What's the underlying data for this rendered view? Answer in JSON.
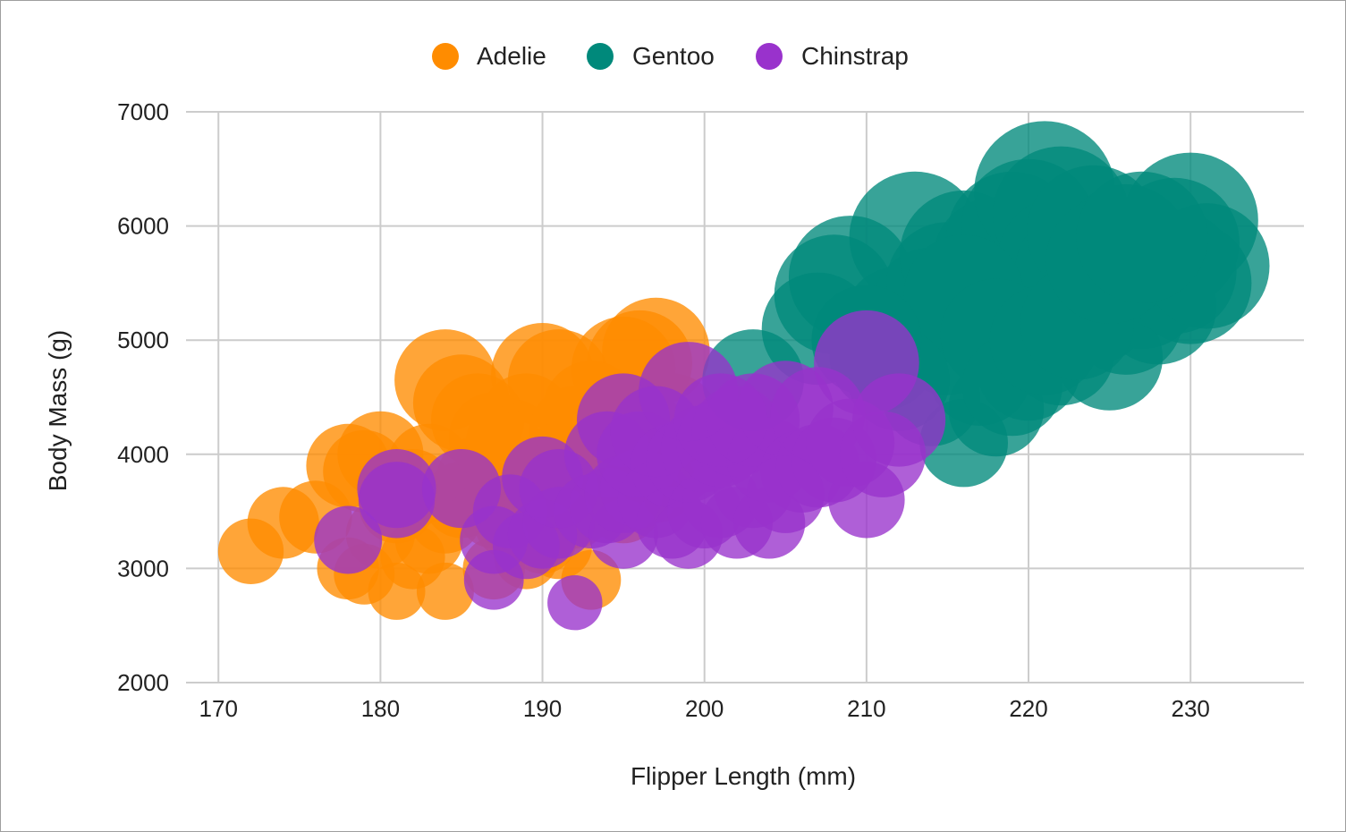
{
  "chart_data": {
    "type": "bubble",
    "xlabel": "Flipper Length (mm)",
    "ylabel": "Body Mass (g)",
    "xlim": [
      168,
      237
    ],
    "ylim": [
      2000,
      7000
    ],
    "xticks": [
      170,
      180,
      190,
      200,
      210,
      220,
      230
    ],
    "yticks": [
      2000,
      3000,
      4000,
      5000,
      6000,
      7000
    ],
    "grid": true,
    "legend_position": "top-center",
    "series": [
      {
        "name": "Adelie",
        "color": "#ff8c00",
        "points": [
          [
            172,
            3150
          ],
          [
            174,
            3400
          ],
          [
            176,
            3450
          ],
          [
            178,
            3900
          ],
          [
            178,
            3000
          ],
          [
            179,
            2950
          ],
          [
            180,
            3300
          ],
          [
            180,
            4000
          ],
          [
            181,
            2800
          ],
          [
            182,
            3100
          ],
          [
            182,
            3700
          ],
          [
            183,
            3250
          ],
          [
            184,
            4650
          ],
          [
            184,
            2800
          ],
          [
            185,
            3600
          ],
          [
            185,
            4450
          ],
          [
            186,
            3800
          ],
          [
            186,
            4300
          ],
          [
            187,
            3500
          ],
          [
            187,
            3000
          ],
          [
            188,
            3400
          ],
          [
            188,
            4100
          ],
          [
            189,
            3600
          ],
          [
            189,
            4300
          ],
          [
            190,
            3700
          ],
          [
            190,
            4700
          ],
          [
            190,
            3250
          ],
          [
            191,
            4650
          ],
          [
            191,
            3900
          ],
          [
            192,
            3500
          ],
          [
            192,
            4200
          ],
          [
            193,
            2900
          ],
          [
            193,
            3800
          ],
          [
            194,
            4000
          ],
          [
            195,
            4750
          ],
          [
            195,
            3550
          ],
          [
            196,
            4800
          ],
          [
            196,
            4200
          ],
          [
            197,
            4900
          ],
          [
            197,
            3750
          ],
          [
            198,
            4300
          ],
          [
            184,
            3450
          ],
          [
            181,
            3550
          ],
          [
            186,
            3650
          ],
          [
            189,
            3100
          ],
          [
            193,
            4400
          ],
          [
            179,
            3850
          ],
          [
            183,
            3900
          ],
          [
            187,
            4150
          ],
          [
            191,
            3200
          ]
        ]
      },
      {
        "name": "Gentoo",
        "color": "#00897b",
        "points": [
          [
            203,
            4650
          ],
          [
            207,
            5100
          ],
          [
            208,
            5400
          ],
          [
            209,
            5550
          ],
          [
            211,
            4850
          ],
          [
            212,
            5150
          ],
          [
            213,
            5900
          ],
          [
            214,
            5300
          ],
          [
            215,
            5500
          ],
          [
            215,
            5000
          ],
          [
            216,
            4100
          ],
          [
            216,
            5750
          ],
          [
            217,
            4700
          ],
          [
            217,
            5300
          ],
          [
            218,
            5700
          ],
          [
            218,
            4400
          ],
          [
            219,
            5200
          ],
          [
            219,
            5900
          ],
          [
            220,
            6000
          ],
          [
            220,
            4750
          ],
          [
            220,
            5400
          ],
          [
            221,
            6300
          ],
          [
            221,
            5550
          ],
          [
            222,
            6100
          ],
          [
            222,
            4900
          ],
          [
            222,
            5700
          ],
          [
            223,
            5600
          ],
          [
            224,
            5950
          ],
          [
            224,
            5300
          ],
          [
            225,
            4850
          ],
          [
            225,
            5500
          ],
          [
            226,
            5800
          ],
          [
            226,
            5200
          ],
          [
            227,
            5450
          ],
          [
            228,
            5300
          ],
          [
            229,
            5600
          ],
          [
            229,
            5850
          ],
          [
            230,
            6050
          ],
          [
            230,
            5500
          ],
          [
            231,
            5650
          ],
          [
            214,
            4500
          ],
          [
            216,
            5400
          ],
          [
            218,
            5050
          ],
          [
            219,
            4600
          ],
          [
            221,
            5000
          ],
          [
            223,
            5150
          ],
          [
            225,
            5700
          ],
          [
            227,
            5900
          ],
          [
            212,
            4650
          ],
          [
            210,
            5000
          ]
        ]
      },
      {
        "name": "Chinstrap",
        "color": "#9932cc",
        "points": [
          [
            178,
            3250
          ],
          [
            181,
            3700
          ],
          [
            181,
            3600
          ],
          [
            185,
            3700
          ],
          [
            187,
            2900
          ],
          [
            187,
            3250
          ],
          [
            188,
            3500
          ],
          [
            189,
            3200
          ],
          [
            190,
            3300
          ],
          [
            190,
            3800
          ],
          [
            191,
            3400
          ],
          [
            191,
            3700
          ],
          [
            192,
            2700
          ],
          [
            193,
            3500
          ],
          [
            194,
            3550
          ],
          [
            194,
            4000
          ],
          [
            195,
            3300
          ],
          [
            195,
            4300
          ],
          [
            195,
            3650
          ],
          [
            196,
            3700
          ],
          [
            196,
            4000
          ],
          [
            197,
            3600
          ],
          [
            197,
            4200
          ],
          [
            198,
            3400
          ],
          [
            198,
            3900
          ],
          [
            199,
            3300
          ],
          [
            199,
            3950
          ],
          [
            200,
            3500
          ],
          [
            200,
            4050
          ],
          [
            201,
            3600
          ],
          [
            201,
            4100
          ],
          [
            202,
            3400
          ],
          [
            202,
            4200
          ],
          [
            203,
            3700
          ],
          [
            203,
            4300
          ],
          [
            204,
            3400
          ],
          [
            204,
            3950
          ],
          [
            205,
            4400
          ],
          [
            206,
            3850
          ],
          [
            207,
            3900
          ],
          [
            207,
            4350
          ],
          [
            208,
            3950
          ],
          [
            209,
            4100
          ],
          [
            210,
            3600
          ],
          [
            210,
            4800
          ],
          [
            211,
            4000
          ],
          [
            212,
            4300
          ],
          [
            199,
            4550
          ],
          [
            201,
            4300
          ],
          [
            205,
            3650
          ]
        ]
      }
    ]
  }
}
